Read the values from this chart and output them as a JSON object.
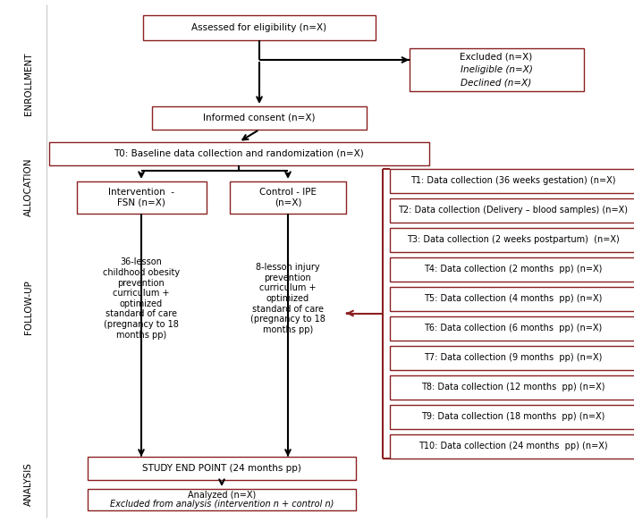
{
  "box_edge_color": "#8B2020",
  "box_fill_color": "#FFFFFF",
  "arrow_color": "#000000",
  "red_color": "#8B2020",
  "text_color": "#000000",
  "bg_color": "#FFFFFF",
  "section_labels": [
    "ENROLLMENT",
    "ALLOCATION",
    "FOLLOW-UP",
    "ANALYSIS"
  ],
  "font_size": 7.5,
  "small_font_size": 7.0,
  "fig_w": 7.09,
  "fig_h": 5.84,
  "dpi": 100
}
